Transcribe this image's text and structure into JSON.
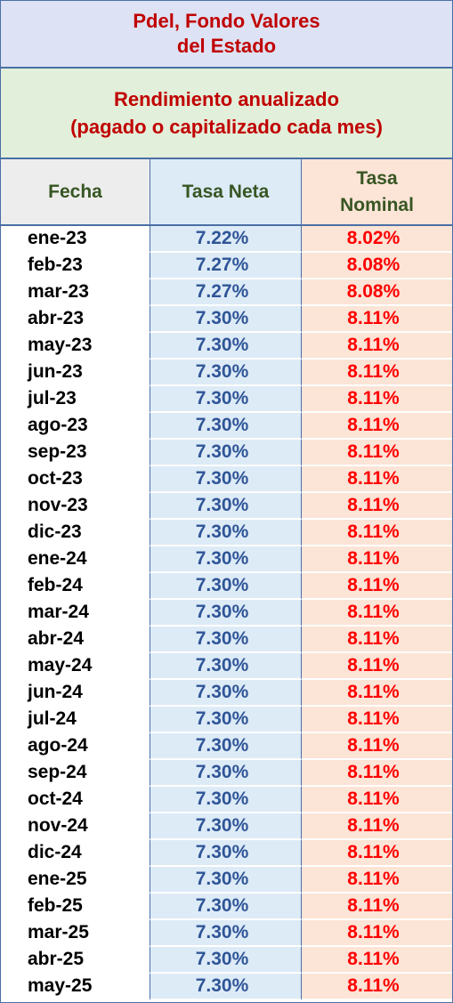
{
  "header": {
    "title": [
      "Pdel, Fondo Valores",
      "del Estado"
    ],
    "subtitle": [
      "Rendimiento anualizado",
      "(pagado o capitalizado cada mes)"
    ]
  },
  "table": {
    "columns": [
      "Fecha",
      "Tasa Neta",
      "Tasa Nominal"
    ],
    "rows": [
      [
        "ene-23",
        "7.22%",
        "8.02%"
      ],
      [
        "feb-23",
        "7.27%",
        "8.08%"
      ],
      [
        "mar-23",
        "7.27%",
        "8.08%"
      ],
      [
        "abr-23",
        "7.30%",
        "8.11%"
      ],
      [
        "may-23",
        "7.30%",
        "8.11%"
      ],
      [
        "jun-23",
        "7.30%",
        "8.11%"
      ],
      [
        "jul-23",
        "7.30%",
        "8.11%"
      ],
      [
        "ago-23",
        "7.30%",
        "8.11%"
      ],
      [
        "sep-23",
        "7.30%",
        "8.11%"
      ],
      [
        "oct-23",
        "7.30%",
        "8.11%"
      ],
      [
        "nov-23",
        "7.30%",
        "8.11%"
      ],
      [
        "dic-23",
        "7.30%",
        "8.11%"
      ],
      [
        "ene-24",
        "7.30%",
        "8.11%"
      ],
      [
        "feb-24",
        "7.30%",
        "8.11%"
      ],
      [
        "mar-24",
        "7.30%",
        "8.11%"
      ],
      [
        "abr-24",
        "7.30%",
        "8.11%"
      ],
      [
        "may-24",
        "7.30%",
        "8.11%"
      ],
      [
        "jun-24",
        "7.30%",
        "8.11%"
      ],
      [
        "jul-24",
        "7.30%",
        "8.11%"
      ],
      [
        "ago-24",
        "7.30%",
        "8.11%"
      ],
      [
        "sep-24",
        "7.30%",
        "8.11%"
      ],
      [
        "oct-24",
        "7.30%",
        "8.11%"
      ],
      [
        "nov-24",
        "7.30%",
        "8.11%"
      ],
      [
        "dic-24",
        "7.30%",
        "8.11%"
      ],
      [
        "ene-25",
        "7.30%",
        "8.11%"
      ],
      [
        "feb-25",
        "7.30%",
        "8.11%"
      ],
      [
        "mar-25",
        "7.30%",
        "8.11%"
      ],
      [
        "abr-25",
        "7.30%",
        "8.11%"
      ],
      [
        "may-25",
        "7.30%",
        "8.11%"
      ]
    ]
  }
}
